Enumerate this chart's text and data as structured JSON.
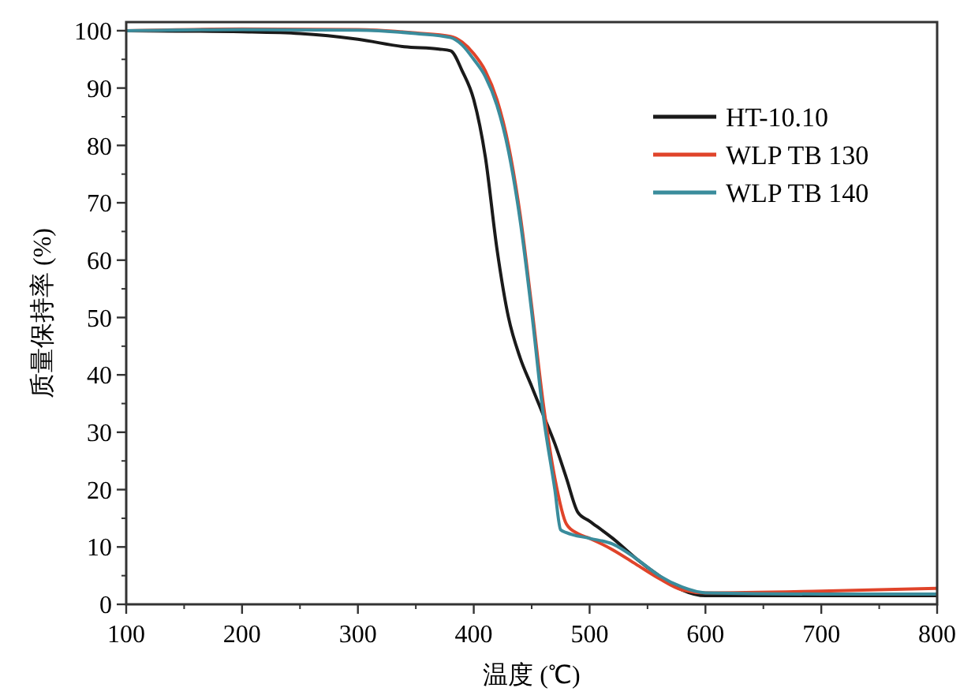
{
  "chart_data": {
    "type": "line",
    "xlabel": "温度 (℃)",
    "ylabel": "质量保持率 (%)",
    "xlim": [
      100,
      800
    ],
    "xticks": [
      100,
      200,
      300,
      400,
      500,
      600,
      700,
      800
    ],
    "ylim": [
      0,
      101.5
    ],
    "yticks": [
      0,
      10,
      20,
      30,
      40,
      50,
      60,
      70,
      80,
      90,
      100
    ],
    "legend": "top right",
    "grid": false,
    "marker": "none",
    "line_style": "solid",
    "series": [
      {
        "name": "HT-10.10",
        "color": "#1a1a1a",
        "x": [
          100,
          200,
          250,
          300,
          340,
          370,
          380,
          390,
          400,
          410,
          420,
          430,
          440,
          450,
          460,
          470,
          480,
          490,
          500,
          520,
          540,
          560,
          580,
          600,
          700,
          800
        ],
        "values": [
          100,
          99.8,
          99.5,
          98.5,
          97.2,
          96.8,
          96.5,
          93,
          88,
          78,
          62,
          50,
          43,
          38,
          33,
          28,
          22,
          16,
          14.5,
          11.5,
          8,
          5,
          2.5,
          1.5,
          1.5,
          1.5
        ]
      },
      {
        "name": "WLP TB 130",
        "color": "#e0442a",
        "x": [
          100,
          200,
          300,
          350,
          380,
          390,
          400,
          410,
          420,
          430,
          440,
          450,
          460,
          470,
          480,
          490,
          500,
          520,
          540,
          560,
          580,
          600,
          700,
          800
        ],
        "values": [
          100,
          100.3,
          100.2,
          99.6,
          99,
          98,
          96,
          93,
          88,
          80,
          68,
          52,
          35,
          22,
          14,
          12.3,
          11.5,
          9.5,
          7,
          4.5,
          2.5,
          2,
          2.3,
          2.8
        ]
      },
      {
        "name": "WLP TB 140",
        "color": "#3a8c9c",
        "x": [
          100,
          200,
          300,
          350,
          380,
          390,
          400,
          410,
          420,
          430,
          440,
          450,
          460,
          470,
          475,
          480,
          500,
          520,
          540,
          560,
          580,
          600,
          700,
          800
        ],
        "values": [
          100,
          100.2,
          100.1,
          99.5,
          98.8,
          97.5,
          95,
          92,
          87,
          79,
          67,
          51,
          33,
          20,
          13,
          12.5,
          11.5,
          10.5,
          8,
          5,
          3,
          2,
          1.8,
          1.8
        ]
      }
    ]
  }
}
